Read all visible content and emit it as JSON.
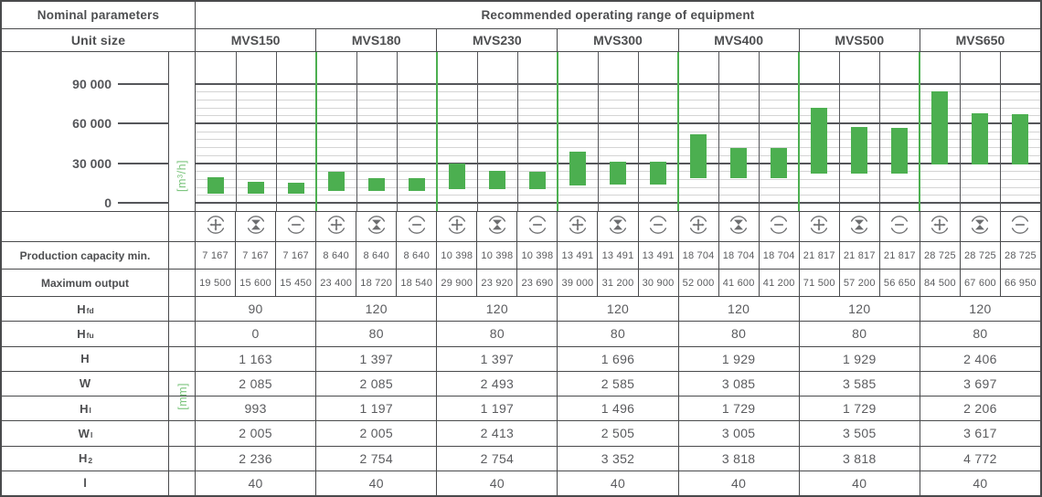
{
  "header": {
    "left_title": "Nominal parameters",
    "right_title": "Recommended operating range of equipment",
    "unit_size_label": "Unit size"
  },
  "units": [
    "MVS150",
    "MVS180",
    "MVS230",
    "MVS300",
    "MVS400",
    "MVS500",
    "MVS650"
  ],
  "icon_types": [
    "supply-plus-icon",
    "supply-exhaust-cross-icon",
    "exhaust-minus-icon"
  ],
  "chart_data": {
    "type": "bar",
    "subtype": "floating-range-bars",
    "title": "Recommended operating range of equipment",
    "ylabel": "[m³/h]",
    "xlabel": "",
    "ylim": [
      0,
      114000
    ],
    "ytick_values": [
      0,
      30000,
      60000,
      90000
    ],
    "ytick_labels": [
      "0",
      "30 000",
      "60 000",
      "90 000"
    ],
    "minor_gridline_step": 6000,
    "minor_gridline_max": 90000,
    "grid": "on",
    "categories": [
      "MVS150",
      "MVS180",
      "MVS230",
      "MVS300",
      "MVS400",
      "MVS500",
      "MVS650"
    ],
    "bars_per_category": 3,
    "bar_meaning": [
      "supply (+)",
      "supply/exhaust (x)",
      "exhaust (-)"
    ],
    "ranges": [
      [
        [
          7167,
          19500
        ],
        [
          7167,
          15600
        ],
        [
          7167,
          15450
        ]
      ],
      [
        [
          8640,
          23400
        ],
        [
          8640,
          18720
        ],
        [
          8640,
          18540
        ]
      ],
      [
        [
          10398,
          29900
        ],
        [
          10398,
          23920
        ],
        [
          10398,
          23690
        ]
      ],
      [
        [
          13491,
          39000
        ],
        [
          13491,
          31200
        ],
        [
          13491,
          30900
        ]
      ],
      [
        [
          18704,
          52000
        ],
        [
          18704,
          41600
        ],
        [
          18704,
          41200
        ]
      ],
      [
        [
          21817,
          71500
        ],
        [
          21817,
          57200
        ],
        [
          21817,
          56650
        ]
      ],
      [
        [
          28725,
          84500
        ],
        [
          28725,
          67600
        ],
        [
          28725,
          66950
        ]
      ]
    ]
  },
  "capacity_rows": [
    {
      "label": "Production capacity min.",
      "values": [
        "7 167",
        "7 167",
        "7 167",
        "8 640",
        "8 640",
        "8 640",
        "10 398",
        "10 398",
        "10 398",
        "13 491",
        "13 491",
        "13 491",
        "18 704",
        "18 704",
        "18 704",
        "21 817",
        "21 817",
        "21 817",
        "28 725",
        "28 725",
        "28 725"
      ]
    },
    {
      "label": "Maximum output",
      "values": [
        "19 500",
        "15 600",
        "15 450",
        "23 400",
        "18 720",
        "18 540",
        "29 900",
        "23 920",
        "23 690",
        "39 000",
        "31 200",
        "30 900",
        "52 000",
        "41 600",
        "41 200",
        "71 500",
        "57 200",
        "56 650",
        "84 500",
        "67 600",
        "66 950"
      ]
    }
  ],
  "dimension_unit_label": "[mm]",
  "dimension_rows": [
    {
      "label_main": "H",
      "label_sub": "fd",
      "values": [
        "90",
        "120",
        "120",
        "120",
        "120",
        "120",
        "120"
      ]
    },
    {
      "label_main": "H",
      "label_sub": "fu",
      "values": [
        "0",
        "80",
        "80",
        "80",
        "80",
        "80",
        "80"
      ]
    },
    {
      "label_main": "H",
      "label_sub": "",
      "values": [
        "1 163",
        "1 397",
        "1 397",
        "1 696",
        "1 929",
        "1 929",
        "2 406"
      ]
    },
    {
      "label_main": "W",
      "label_sub": "",
      "values": [
        "2 085",
        "2 085",
        "2 493",
        "2 585",
        "3 085",
        "3 585",
        "3 697"
      ]
    },
    {
      "label_main": "H",
      "label_sub": "l",
      "values": [
        "993",
        "1 197",
        "1 197",
        "1 496",
        "1 729",
        "1 729",
        "2 206"
      ]
    },
    {
      "label_main": "W",
      "label_sub": "l",
      "values": [
        "2 005",
        "2 005",
        "2 413",
        "2 505",
        "3 005",
        "3 505",
        "3 617"
      ]
    },
    {
      "label_main": "H",
      "label_sub": "2",
      "values": [
        "2 236",
        "2 754",
        "2 754",
        "3 352",
        "3 818",
        "3 818",
        "4 772"
      ]
    },
    {
      "label_main": "l",
      "label_sub": "",
      "values": [
        "40",
        "40",
        "40",
        "40",
        "40",
        "40",
        "40"
      ]
    }
  ],
  "colors": {
    "accent_green": "#4caf50",
    "unit_label_green": "#7dc57f",
    "border_dark": "#494a4c",
    "gridline_major": "#55565a",
    "gridline_minor": "#d4d4d4",
    "text_dark": "#4d4e50",
    "text_value": "#5a5b5e",
    "icon_gray": "#6d6e70"
  }
}
